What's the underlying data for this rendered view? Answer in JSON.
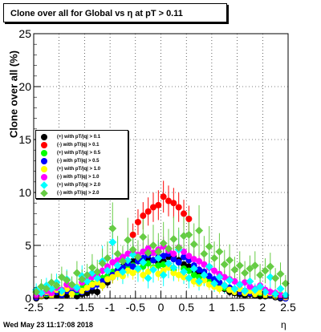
{
  "title": "Clone  over all for Global vs   η at pT > 0.11",
  "footer": {
    "date": "Wed May 23 11:17:08 2018"
  },
  "chart_data": {
    "type": "scatter",
    "title": "Clone  over all for Global vs   η at pT > 0.11",
    "xlabel": "η",
    "ylabel": "Clone  over all (%)",
    "xlim": [
      -2.5,
      2.5
    ],
    "ylim": [
      0,
      25
    ],
    "xticks": [
      "-2.5",
      "-2",
      "-1.5",
      "-1",
      "-0.5",
      "0",
      "0.5",
      "1",
      "1.5",
      "2",
      "2.5"
    ],
    "yticks": [
      "0",
      "5",
      "10",
      "15",
      "20",
      "25"
    ],
    "grid": true,
    "legend_position": "left, middle",
    "x": [
      -2.45,
      -2.35,
      -2.25,
      -2.15,
      -2.05,
      -1.95,
      -1.85,
      -1.75,
      -1.65,
      -1.55,
      -1.45,
      -1.35,
      -1.25,
      -1.15,
      -1.05,
      -0.95,
      -0.85,
      -0.75,
      -0.65,
      -0.55,
      -0.45,
      -0.35,
      -0.25,
      -0.15,
      -0.05,
      0.05,
      0.15,
      0.25,
      0.35,
      0.45,
      0.55,
      0.65,
      0.75,
      0.85,
      0.95,
      1.05,
      1.15,
      1.25,
      1.35,
      1.45,
      1.55,
      1.65,
      1.75,
      1.85,
      1.95,
      2.05,
      2.15,
      2.25,
      2.35,
      2.45
    ],
    "series": [
      {
        "name": "(+) with pT/|q| > 0.1",
        "color": "#000000",
        "marker": "circle",
        "values": [
          0.0,
          0.2,
          0.2,
          0.4,
          0.3,
          0.5,
          0.3,
          0.6,
          0.2,
          0.4,
          0.5,
          0.7,
          0.6,
          1.2,
          1.5,
          2.0,
          2.6,
          3.0,
          3.2,
          3.5,
          3.8,
          3.4,
          3.7,
          3.6,
          3.3,
          3.5,
          3.9,
          4.0,
          3.6,
          3.2,
          3.0,
          2.6,
          2.4,
          2.0,
          1.8,
          1.4,
          1.2,
          0.9,
          0.6,
          0.5,
          0.4,
          0.3,
          0.4,
          0.3,
          0.2,
          0.2,
          0.3,
          0.1,
          0.0,
          0.0
        ]
      },
      {
        "name": "(-) with pT/|q| > 0.1",
        "color": "#ff0000",
        "marker": "circle",
        "values": [
          null,
          null,
          null,
          null,
          null,
          null,
          null,
          null,
          null,
          null,
          null,
          null,
          null,
          null,
          null,
          null,
          null,
          null,
          null,
          6.0,
          7.2,
          7.8,
          8.2,
          8.6,
          8.8,
          9.6,
          9.2,
          9.0,
          8.6,
          8.0,
          7.5,
          null,
          null,
          null,
          null,
          null,
          null,
          null,
          null,
          null,
          null,
          null,
          null,
          null,
          null,
          null,
          null,
          null,
          null,
          null
        ]
      },
      {
        "name": "(+) with pT/|q| > 0.5",
        "color": "#00ff00",
        "marker": "circle",
        "values": [
          0.3,
          0.5,
          0.4,
          0.6,
          0.7,
          0.5,
          0.8,
          0.9,
          0.6,
          1.0,
          1.2,
          1.4,
          1.5,
          1.9,
          2.1,
          2.5,
          2.7,
          2.6,
          2.9,
          3.1,
          2.8,
          3.0,
          3.3,
          2.9,
          3.1,
          3.2,
          3.0,
          2.7,
          3.4,
          2.8,
          2.6,
          2.2,
          2.0,
          1.8,
          1.7,
          1.5,
          1.2,
          1.0,
          0.9,
          0.7,
          0.6,
          0.5,
          0.6,
          0.4,
          0.5,
          0.3,
          0.4,
          0.2,
          0.3,
          0.1
        ]
      },
      {
        "name": "(-) with pT/|q| > 0.5",
        "color": "#0000ff",
        "marker": "circle",
        "values": [
          0.1,
          0.3,
          0.5,
          0.4,
          0.6,
          0.3,
          0.7,
          0.5,
          0.8,
          0.6,
          0.9,
          1.1,
          1.3,
          1.6,
          1.8,
          2.2,
          2.6,
          2.9,
          3.3,
          3.0,
          3.5,
          3.8,
          4.1,
          3.6,
          3.9,
          4.0,
          4.2,
          3.7,
          3.4,
          3.9,
          3.6,
          3.1,
          2.7,
          2.5,
          2.1,
          1.8,
          1.5,
          1.2,
          1.0,
          0.8,
          0.6,
          0.7,
          0.5,
          0.4,
          0.6,
          0.3,
          0.4,
          0.2,
          0.1,
          0.0
        ]
      },
      {
        "name": "(+) with pT/|q| > 1.0",
        "color": "#ffff00",
        "marker": "circle",
        "values": [
          0.4,
          0.2,
          0.6,
          0.3,
          0.8,
          0.5,
          0.9,
          0.4,
          1.1,
          0.7,
          1.0,
          1.3,
          1.5,
          1.2,
          1.8,
          2.0,
          2.3,
          2.1,
          2.6,
          2.4,
          2.7,
          2.2,
          2.5,
          2.8,
          2.3,
          2.6,
          2.9,
          2.4,
          2.2,
          2.0,
          1.9,
          1.6,
          1.4,
          1.7,
          1.3,
          1.1,
          0.9,
          1.2,
          0.8,
          0.6,
          0.9,
          0.5,
          0.7,
          0.4,
          0.6,
          0.3,
          0.5,
          0.2,
          0.4,
          0.1
        ]
      },
      {
        "name": "(-) with pT/|q| > 1.0",
        "color": "#ff00ff",
        "marker": "circle",
        "values": [
          0.2,
          0.4,
          0.7,
          0.5,
          1.0,
          0.8,
          1.3,
          1.1,
          0.9,
          1.5,
          1.7,
          2.0,
          2.2,
          2.6,
          3.0,
          3.4,
          3.6,
          3.9,
          4.2,
          4.5,
          4.1,
          4.4,
          4.7,
          4.3,
          4.6,
          4.9,
          4.5,
          4.2,
          4.8,
          4.4,
          4.0,
          3.7,
          3.5,
          3.2,
          2.9,
          2.6,
          2.3,
          2.0,
          1.8,
          1.6,
          1.3,
          1.5,
          1.1,
          0.9,
          1.2,
          0.8,
          0.6,
          0.5,
          0.3,
          0.2
        ]
      },
      {
        "name": "(+) with pT/|q| > 2.0",
        "color": "#00ffff",
        "marker": "diamond",
        "values": [
          0.8,
          0.5,
          1.2,
          0.9,
          1.5,
          0.7,
          1.8,
          1.3,
          1.0,
          2.1,
          1.6,
          2.4,
          1.9,
          3.5,
          2.6,
          5.3,
          3.1,
          2.5,
          3.6,
          4.1,
          2.8,
          3.4,
          1.9,
          2.7,
          3.8,
          2.2,
          3.3,
          2.9,
          4.6,
          2.5,
          1.9,
          2.8,
          1.6,
          2.2,
          3.0,
          1.4,
          2.0,
          1.2,
          1.7,
          0.9,
          1.3,
          0.7,
          1.6,
          0.8,
          1.1,
          0.6,
          2.0,
          0.4,
          0.9,
          0.3
        ]
      },
      {
        "name": "(-) with pT/|q| > 2.0",
        "color": "#66cc44",
        "marker": "diamond",
        "values": [
          0.6,
          1.1,
          0.9,
          1.5,
          1.2,
          2.0,
          1.7,
          1.3,
          2.4,
          1.8,
          2.2,
          2.9,
          2.5,
          3.3,
          3.8,
          6.6,
          4.2,
          3.5,
          5.5,
          4.6,
          3.9,
          5.8,
          4.3,
          5.0,
          4.4,
          5.2,
          4.7,
          5.6,
          4.8,
          5.9,
          6.0,
          5.1,
          6.4,
          4.2,
          4.9,
          3.8,
          4.4,
          3.2,
          3.6,
          2.7,
          3.1,
          2.4,
          2.8,
          3.1,
          2.2,
          2.6,
          3.0,
          1.9,
          2.3,
          1.4
        ]
      }
    ]
  }
}
